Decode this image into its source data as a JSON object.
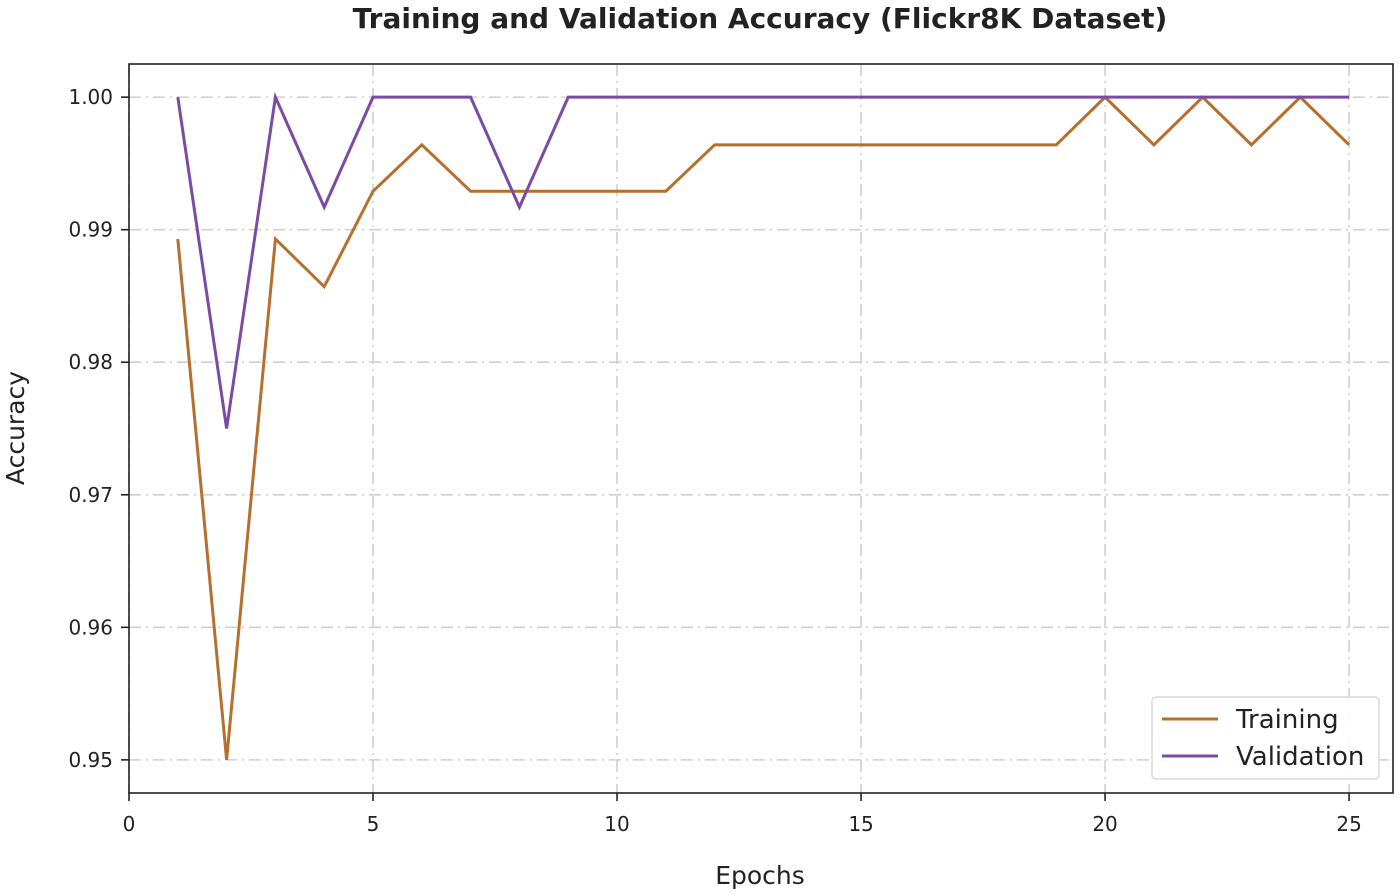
{
  "chart_data": {
    "type": "line",
    "title": "Training and Validation Accuracy (Flickr8K Dataset)",
    "xlabel": "Epochs",
    "ylabel": "Accuracy",
    "xlim": [
      0,
      25.9
    ],
    "ylim": [
      0.9475,
      1.0025
    ],
    "xticks": [
      0,
      5,
      10,
      15,
      20,
      25
    ],
    "yticks": [
      0.95,
      0.96,
      0.97,
      0.98,
      0.99,
      1.0
    ],
    "ytick_labels": [
      "0.95",
      "0.96",
      "0.97",
      "0.98",
      "0.99",
      "1.00"
    ],
    "grid": true,
    "legend_position": "bottom-right",
    "x": [
      1,
      2,
      3,
      4,
      5,
      6,
      7,
      8,
      9,
      10,
      11,
      12,
      13,
      14,
      15,
      16,
      17,
      18,
      19,
      20,
      21,
      22,
      23,
      24,
      25
    ],
    "series": [
      {
        "name": "Training",
        "color": "#b5702e",
        "values": [
          0.9893,
          0.95,
          0.9893,
          0.9857,
          0.9929,
          0.9964,
          0.9929,
          0.9929,
          0.9929,
          0.9929,
          0.9929,
          0.9964,
          0.9964,
          0.9964,
          0.9964,
          0.9964,
          0.9964,
          0.9964,
          0.9964,
          1.0,
          0.9964,
          1.0,
          0.9964,
          1.0,
          0.9964
        ]
      },
      {
        "name": "Validation",
        "color": "#7b4ba3",
        "values": [
          1.0,
          0.975,
          1.0,
          0.9917,
          1.0,
          1.0,
          1.0,
          0.9917,
          1.0,
          1.0,
          1.0,
          1.0,
          1.0,
          1.0,
          1.0,
          1.0,
          1.0,
          1.0,
          1.0,
          1.0,
          1.0,
          1.0,
          1.0,
          1.0,
          1.0
        ]
      }
    ]
  }
}
